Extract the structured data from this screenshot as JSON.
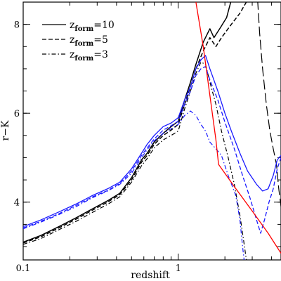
{
  "chart_data": {
    "type": "line",
    "title": "",
    "xlabel": "redshift",
    "ylabel": "r−K",
    "xscale": "log",
    "xlim": [
      0.1,
      4.6
    ],
    "ylim": [
      2.7,
      8.5
    ],
    "x_major_ticks": [
      {
        "value": 0.1,
        "label": "0.1"
      },
      {
        "value": 1,
        "label": "1"
      }
    ],
    "x_minor_ticks": [
      0.2,
      0.3,
      0.4,
      0.5,
      0.6,
      0.7,
      0.8,
      0.9,
      2,
      3,
      4
    ],
    "y_major_ticks": [
      {
        "value": 4,
        "label": "4"
      },
      {
        "value": 6,
        "label": "6"
      },
      {
        "value": 8,
        "label": "8"
      }
    ],
    "y_minor_step": 0.5,
    "grid": false,
    "legend": {
      "placement": "top-left",
      "entries": [
        {
          "style": "solid",
          "var": "z",
          "sub": "form",
          "eq": "=10"
        },
        {
          "style": "dashed",
          "var": "z",
          "sub": "form",
          "eq": "=5"
        },
        {
          "style": "dashdot",
          "var": "z",
          "sub": "form",
          "eq": "=3"
        }
      ]
    },
    "series": [
      {
        "color": "#000000",
        "style": "solid",
        "width": 1.5,
        "points": [
          [
            0.1,
            3.1
          ],
          [
            0.13,
            3.25
          ],
          [
            0.17,
            3.45
          ],
          [
            0.22,
            3.65
          ],
          [
            0.28,
            3.85
          ],
          [
            0.35,
            4.03
          ],
          [
            0.42,
            4.2
          ],
          [
            0.5,
            4.55
          ],
          [
            0.58,
            4.95
          ],
          [
            0.63,
            5.1
          ],
          [
            0.7,
            5.35
          ],
          [
            0.8,
            5.55
          ],
          [
            0.9,
            5.7
          ],
          [
            1.0,
            5.82
          ],
          [
            1.1,
            6.3
          ],
          [
            1.2,
            6.7
          ],
          [
            1.3,
            7.1
          ],
          [
            1.45,
            7.6
          ],
          [
            1.6,
            7.9
          ],
          [
            1.7,
            7.7
          ],
          [
            1.85,
            7.9
          ],
          [
            2.05,
            8.15
          ],
          [
            2.2,
            8.55
          ]
        ]
      },
      {
        "color": "#000000",
        "style": "dashed",
        "width": 1.5,
        "points": [
          [
            0.1,
            3.08
          ],
          [
            0.13,
            3.22
          ],
          [
            0.17,
            3.42
          ],
          [
            0.22,
            3.62
          ],
          [
            0.28,
            3.82
          ],
          [
            0.35,
            4.0
          ],
          [
            0.42,
            4.17
          ],
          [
            0.5,
            4.5
          ],
          [
            0.58,
            4.9
          ],
          [
            0.63,
            5.05
          ],
          [
            0.7,
            5.3
          ],
          [
            0.8,
            5.5
          ],
          [
            0.9,
            5.62
          ],
          [
            1.0,
            5.75
          ],
          [
            1.1,
            6.2
          ],
          [
            1.2,
            6.6
          ],
          [
            1.3,
            7.0
          ],
          [
            1.45,
            7.4
          ],
          [
            1.6,
            7.7
          ],
          [
            1.75,
            7.5
          ],
          [
            1.9,
            7.7
          ],
          [
            2.2,
            8.0
          ],
          [
            2.5,
            8.25
          ],
          [
            2.8,
            8.55
          ]
        ]
      },
      {
        "color": "#000000",
        "style": "dashdot",
        "width": 1.2,
        "points": [
          [
            0.1,
            3.05
          ],
          [
            0.13,
            3.18
          ],
          [
            0.17,
            3.38
          ],
          [
            0.22,
            3.57
          ],
          [
            0.28,
            3.77
          ],
          [
            0.35,
            3.95
          ],
          [
            0.42,
            4.12
          ],
          [
            0.5,
            4.45
          ],
          [
            0.58,
            4.82
          ],
          [
            0.63,
            4.98
          ],
          [
            0.7,
            5.22
          ],
          [
            0.8,
            5.4
          ],
          [
            0.9,
            5.5
          ],
          [
            1.0,
            5.6
          ],
          [
            1.1,
            6.1
          ],
          [
            1.2,
            6.5
          ],
          [
            1.3,
            6.9
          ],
          [
            1.4,
            7.15
          ],
          [
            1.5,
            7.1
          ],
          [
            1.6,
            6.7
          ],
          [
            1.75,
            6.2
          ],
          [
            1.9,
            5.6
          ],
          [
            2.1,
            5.0
          ],
          [
            2.3,
            4.4
          ],
          [
            2.5,
            3.7
          ],
          [
            2.65,
            3.1
          ],
          [
            2.75,
            2.7
          ]
        ]
      },
      {
        "color": "#000000",
        "style": "longdash",
        "width": 1.2,
        "points": [
          [
            3.25,
            8.55
          ],
          [
            3.35,
            7.8
          ],
          [
            3.5,
            7.0
          ],
          [
            3.7,
            6.2
          ],
          [
            3.9,
            5.6
          ],
          [
            4.1,
            5.2
          ],
          [
            4.3,
            4.85
          ],
          [
            4.45,
            4.3
          ],
          [
            4.6,
            3.9
          ]
        ]
      },
      {
        "color": "#1a1aff",
        "style": "solid",
        "width": 1.3,
        "points": [
          [
            0.1,
            3.45
          ],
          [
            0.13,
            3.6
          ],
          [
            0.17,
            3.78
          ],
          [
            0.22,
            3.96
          ],
          [
            0.28,
            4.15
          ],
          [
            0.35,
            4.3
          ],
          [
            0.42,
            4.45
          ],
          [
            0.5,
            4.75
          ],
          [
            0.58,
            5.1
          ],
          [
            0.63,
            5.3
          ],
          [
            0.7,
            5.5
          ],
          [
            0.8,
            5.7
          ],
          [
            0.9,
            5.78
          ],
          [
            1.0,
            5.9
          ],
          [
            1.1,
            6.3
          ],
          [
            1.2,
            6.6
          ],
          [
            1.3,
            7.0
          ],
          [
            1.4,
            7.2
          ],
          [
            1.5,
            7.3
          ],
          [
            1.6,
            7.0
          ],
          [
            1.8,
            6.5
          ],
          [
            2.0,
            6.0
          ],
          [
            2.2,
            5.6
          ],
          [
            2.5,
            5.1
          ],
          [
            2.8,
            4.7
          ],
          [
            3.2,
            4.4
          ],
          [
            3.5,
            4.25
          ],
          [
            3.8,
            4.3
          ],
          [
            4.1,
            4.6
          ],
          [
            4.35,
            4.95
          ],
          [
            4.6,
            5.05
          ]
        ]
      },
      {
        "color": "#1a1aff",
        "style": "dashed",
        "width": 1.3,
        "points": [
          [
            0.1,
            3.42
          ],
          [
            0.13,
            3.57
          ],
          [
            0.17,
            3.74
          ],
          [
            0.22,
            3.93
          ],
          [
            0.28,
            4.12
          ],
          [
            0.35,
            4.26
          ],
          [
            0.42,
            4.42
          ],
          [
            0.5,
            4.7
          ],
          [
            0.58,
            5.05
          ],
          [
            0.63,
            5.22
          ],
          [
            0.7,
            5.42
          ],
          [
            0.8,
            5.62
          ],
          [
            0.9,
            5.72
          ],
          [
            1.0,
            5.82
          ],
          [
            1.1,
            6.2
          ],
          [
            1.2,
            6.5
          ],
          [
            1.3,
            6.85
          ],
          [
            1.4,
            7.0
          ],
          [
            1.5,
            7.05
          ],
          [
            1.6,
            6.75
          ],
          [
            1.8,
            6.3
          ],
          [
            2.0,
            5.8
          ],
          [
            2.3,
            5.2
          ],
          [
            2.6,
            4.6
          ],
          [
            2.9,
            4.1
          ],
          [
            3.2,
            3.6
          ],
          [
            3.4,
            3.3
          ],
          [
            3.6,
            3.6
          ],
          [
            3.85,
            4.0
          ],
          [
            4.1,
            4.3
          ],
          [
            4.35,
            4.75
          ],
          [
            4.6,
            5.0
          ]
        ]
      },
      {
        "color": "#1a1aff",
        "style": "dashdot",
        "width": 1.2,
        "points": [
          [
            0.1,
            3.4
          ],
          [
            0.13,
            3.55
          ],
          [
            0.17,
            3.72
          ],
          [
            0.22,
            3.9
          ],
          [
            0.28,
            4.1
          ],
          [
            0.35,
            4.25
          ],
          [
            0.42,
            4.4
          ],
          [
            0.5,
            4.65
          ],
          [
            0.58,
            5.0
          ],
          [
            0.63,
            5.18
          ],
          [
            0.7,
            5.38
          ],
          [
            0.8,
            5.55
          ],
          [
            0.9,
            5.65
          ],
          [
            1.0,
            5.75
          ],
          [
            1.1,
            5.95
          ],
          [
            1.2,
            6.05
          ],
          [
            1.3,
            5.95
          ],
          [
            1.4,
            5.75
          ],
          [
            1.5,
            5.6
          ],
          [
            1.6,
            5.35
          ],
          [
            1.75,
            5.2
          ],
          [
            1.9,
            5.05
          ],
          [
            2.1,
            4.6
          ],
          [
            2.35,
            4.15
          ],
          [
            2.5,
            3.6
          ],
          [
            2.6,
            3.0
          ],
          [
            2.66,
            2.7
          ]
        ]
      },
      {
        "color": "#ff0000",
        "style": "solid",
        "width": 1.3,
        "points": [
          [
            1.3,
            8.5
          ],
          [
            1.45,
            7.5
          ],
          [
            1.6,
            6.4
          ],
          [
            1.75,
            5.4
          ],
          [
            1.82,
            4.85
          ],
          [
            2.3,
            4.35
          ],
          [
            3.0,
            3.8
          ],
          [
            3.8,
            3.3
          ],
          [
            4.6,
            2.85
          ]
        ]
      }
    ]
  }
}
